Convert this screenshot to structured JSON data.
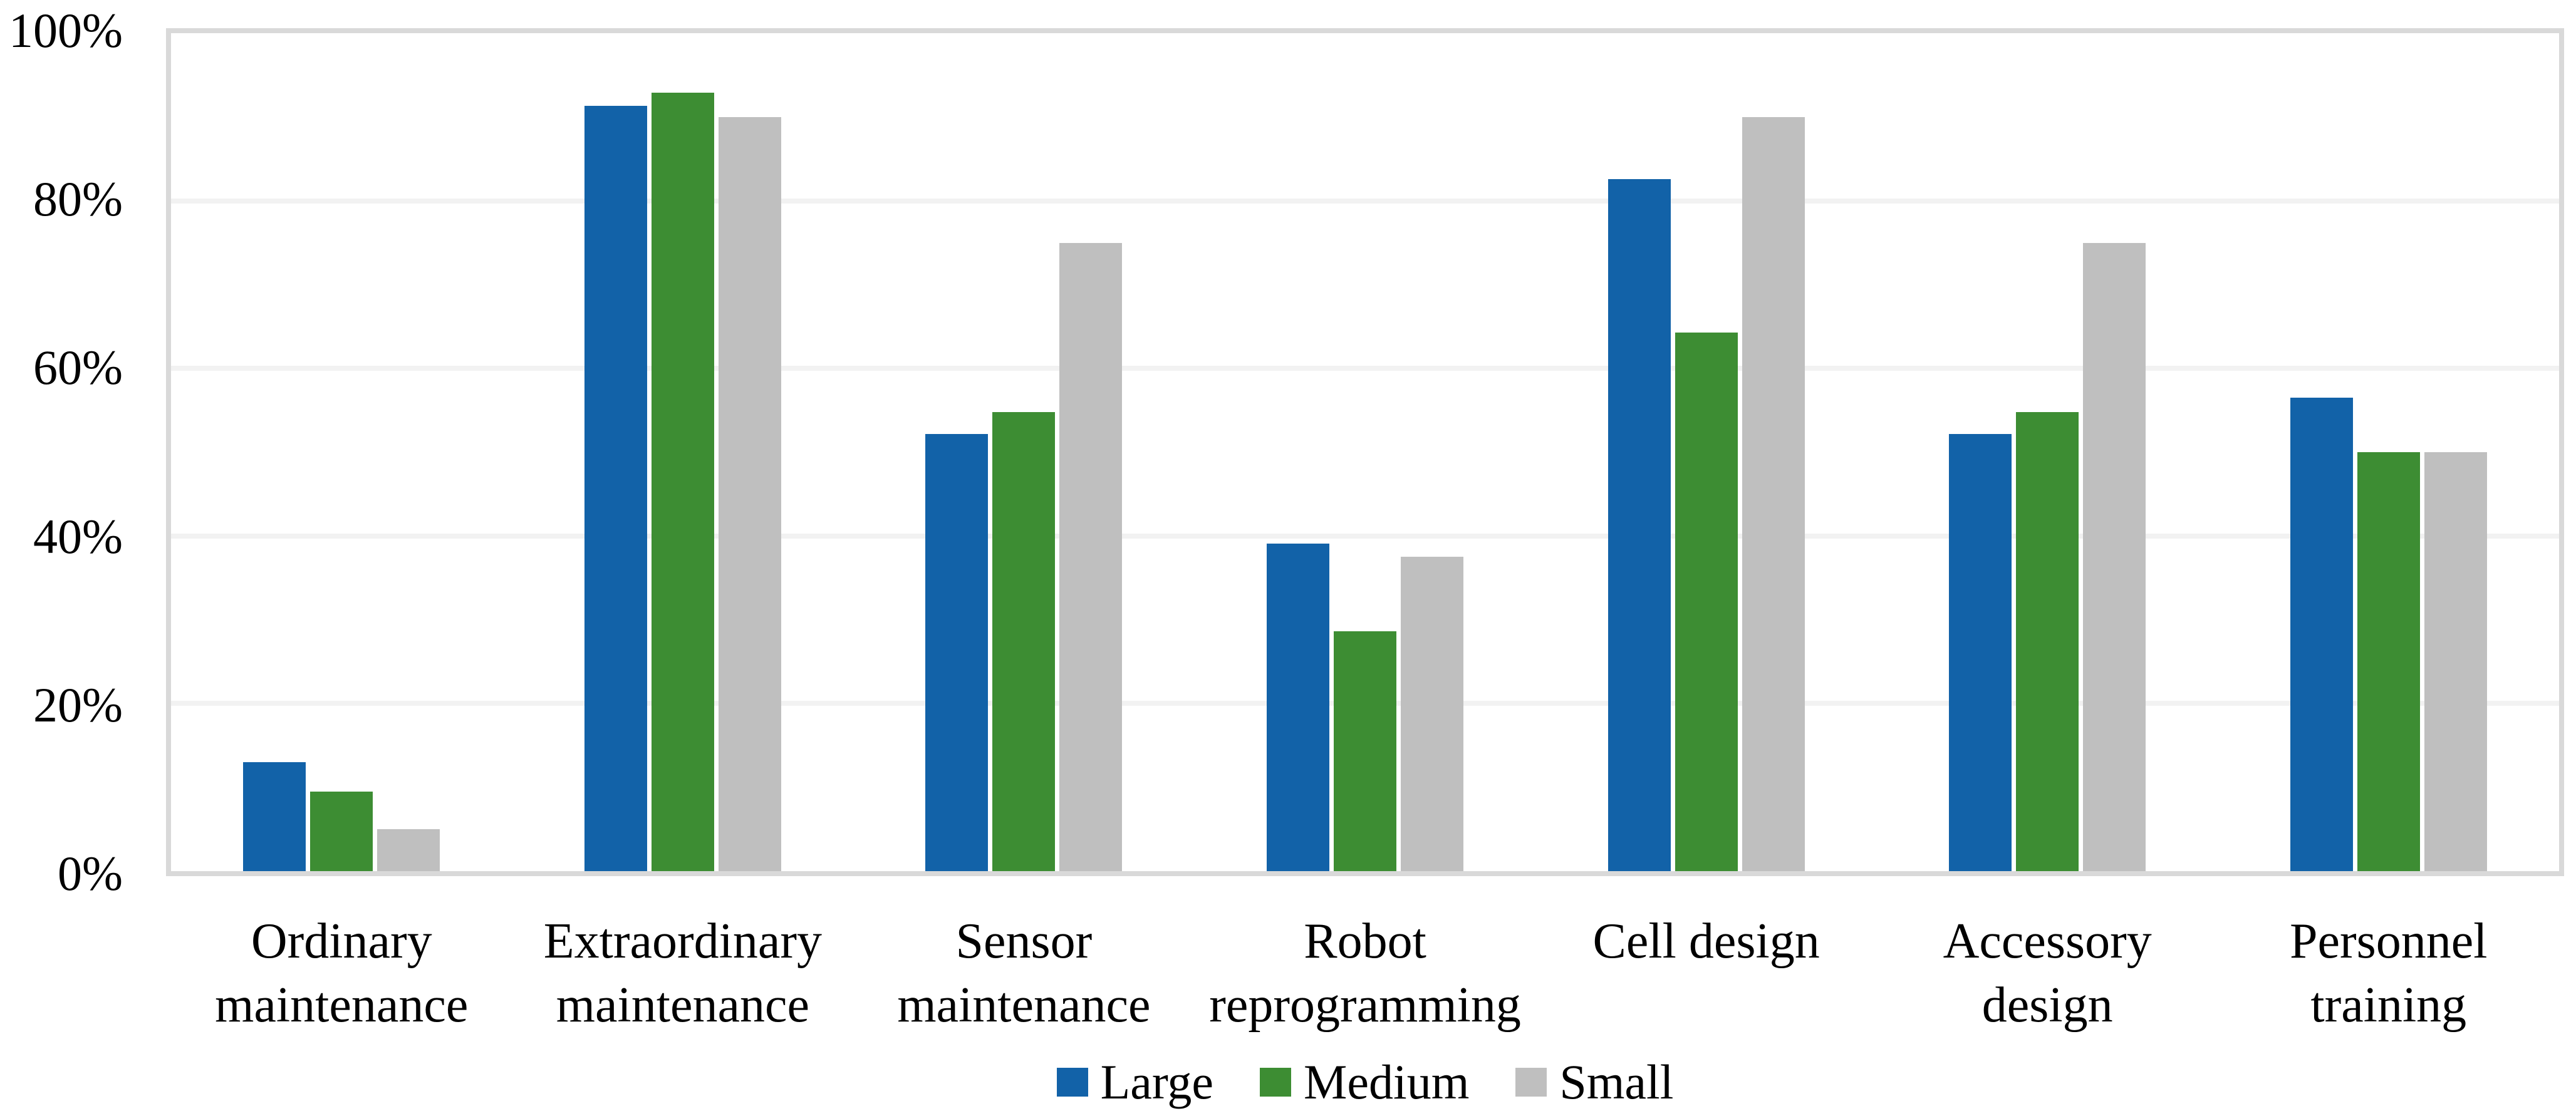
{
  "figure": {
    "background": "#ffffff",
    "text_color": "#000000"
  },
  "chart_data": {
    "type": "bar",
    "title": "",
    "xlabel": "",
    "ylabel": "",
    "categories": [
      "Ordinary\nmaintenance",
      "Extraordinary\nmaintenance",
      "Sensor\nmaintenance",
      "Robot\nreprogramming",
      "Cell design",
      "Accessory\ndesign",
      "Personnel\ntraining"
    ],
    "series": [
      {
        "name": "Large",
        "color": "#1262A8",
        "values": [
          13.0,
          91.3,
          52.2,
          39.1,
          82.6,
          52.2,
          56.5
        ]
      },
      {
        "name": "Medium",
        "color": "#3D8D33",
        "values": [
          9.5,
          92.9,
          54.8,
          28.6,
          64.3,
          54.8,
          50.0
        ]
      },
      {
        "name": "Small",
        "color": "#BFBFBF",
        "values": [
          5.0,
          90.0,
          75.0,
          37.5,
          90.0,
          75.0,
          50.0
        ]
      }
    ],
    "ylim": [
      0,
      100
    ],
    "yticks": [
      0,
      20,
      40,
      60,
      80,
      100
    ],
    "ytick_labels": [
      "0%",
      "20%",
      "40%",
      "60%",
      "80%",
      "100%"
    ],
    "grid": true,
    "gridline_color": "#F2F2F2",
    "plot_border_color": "#D9D9D9",
    "legend_position": "bottom"
  }
}
